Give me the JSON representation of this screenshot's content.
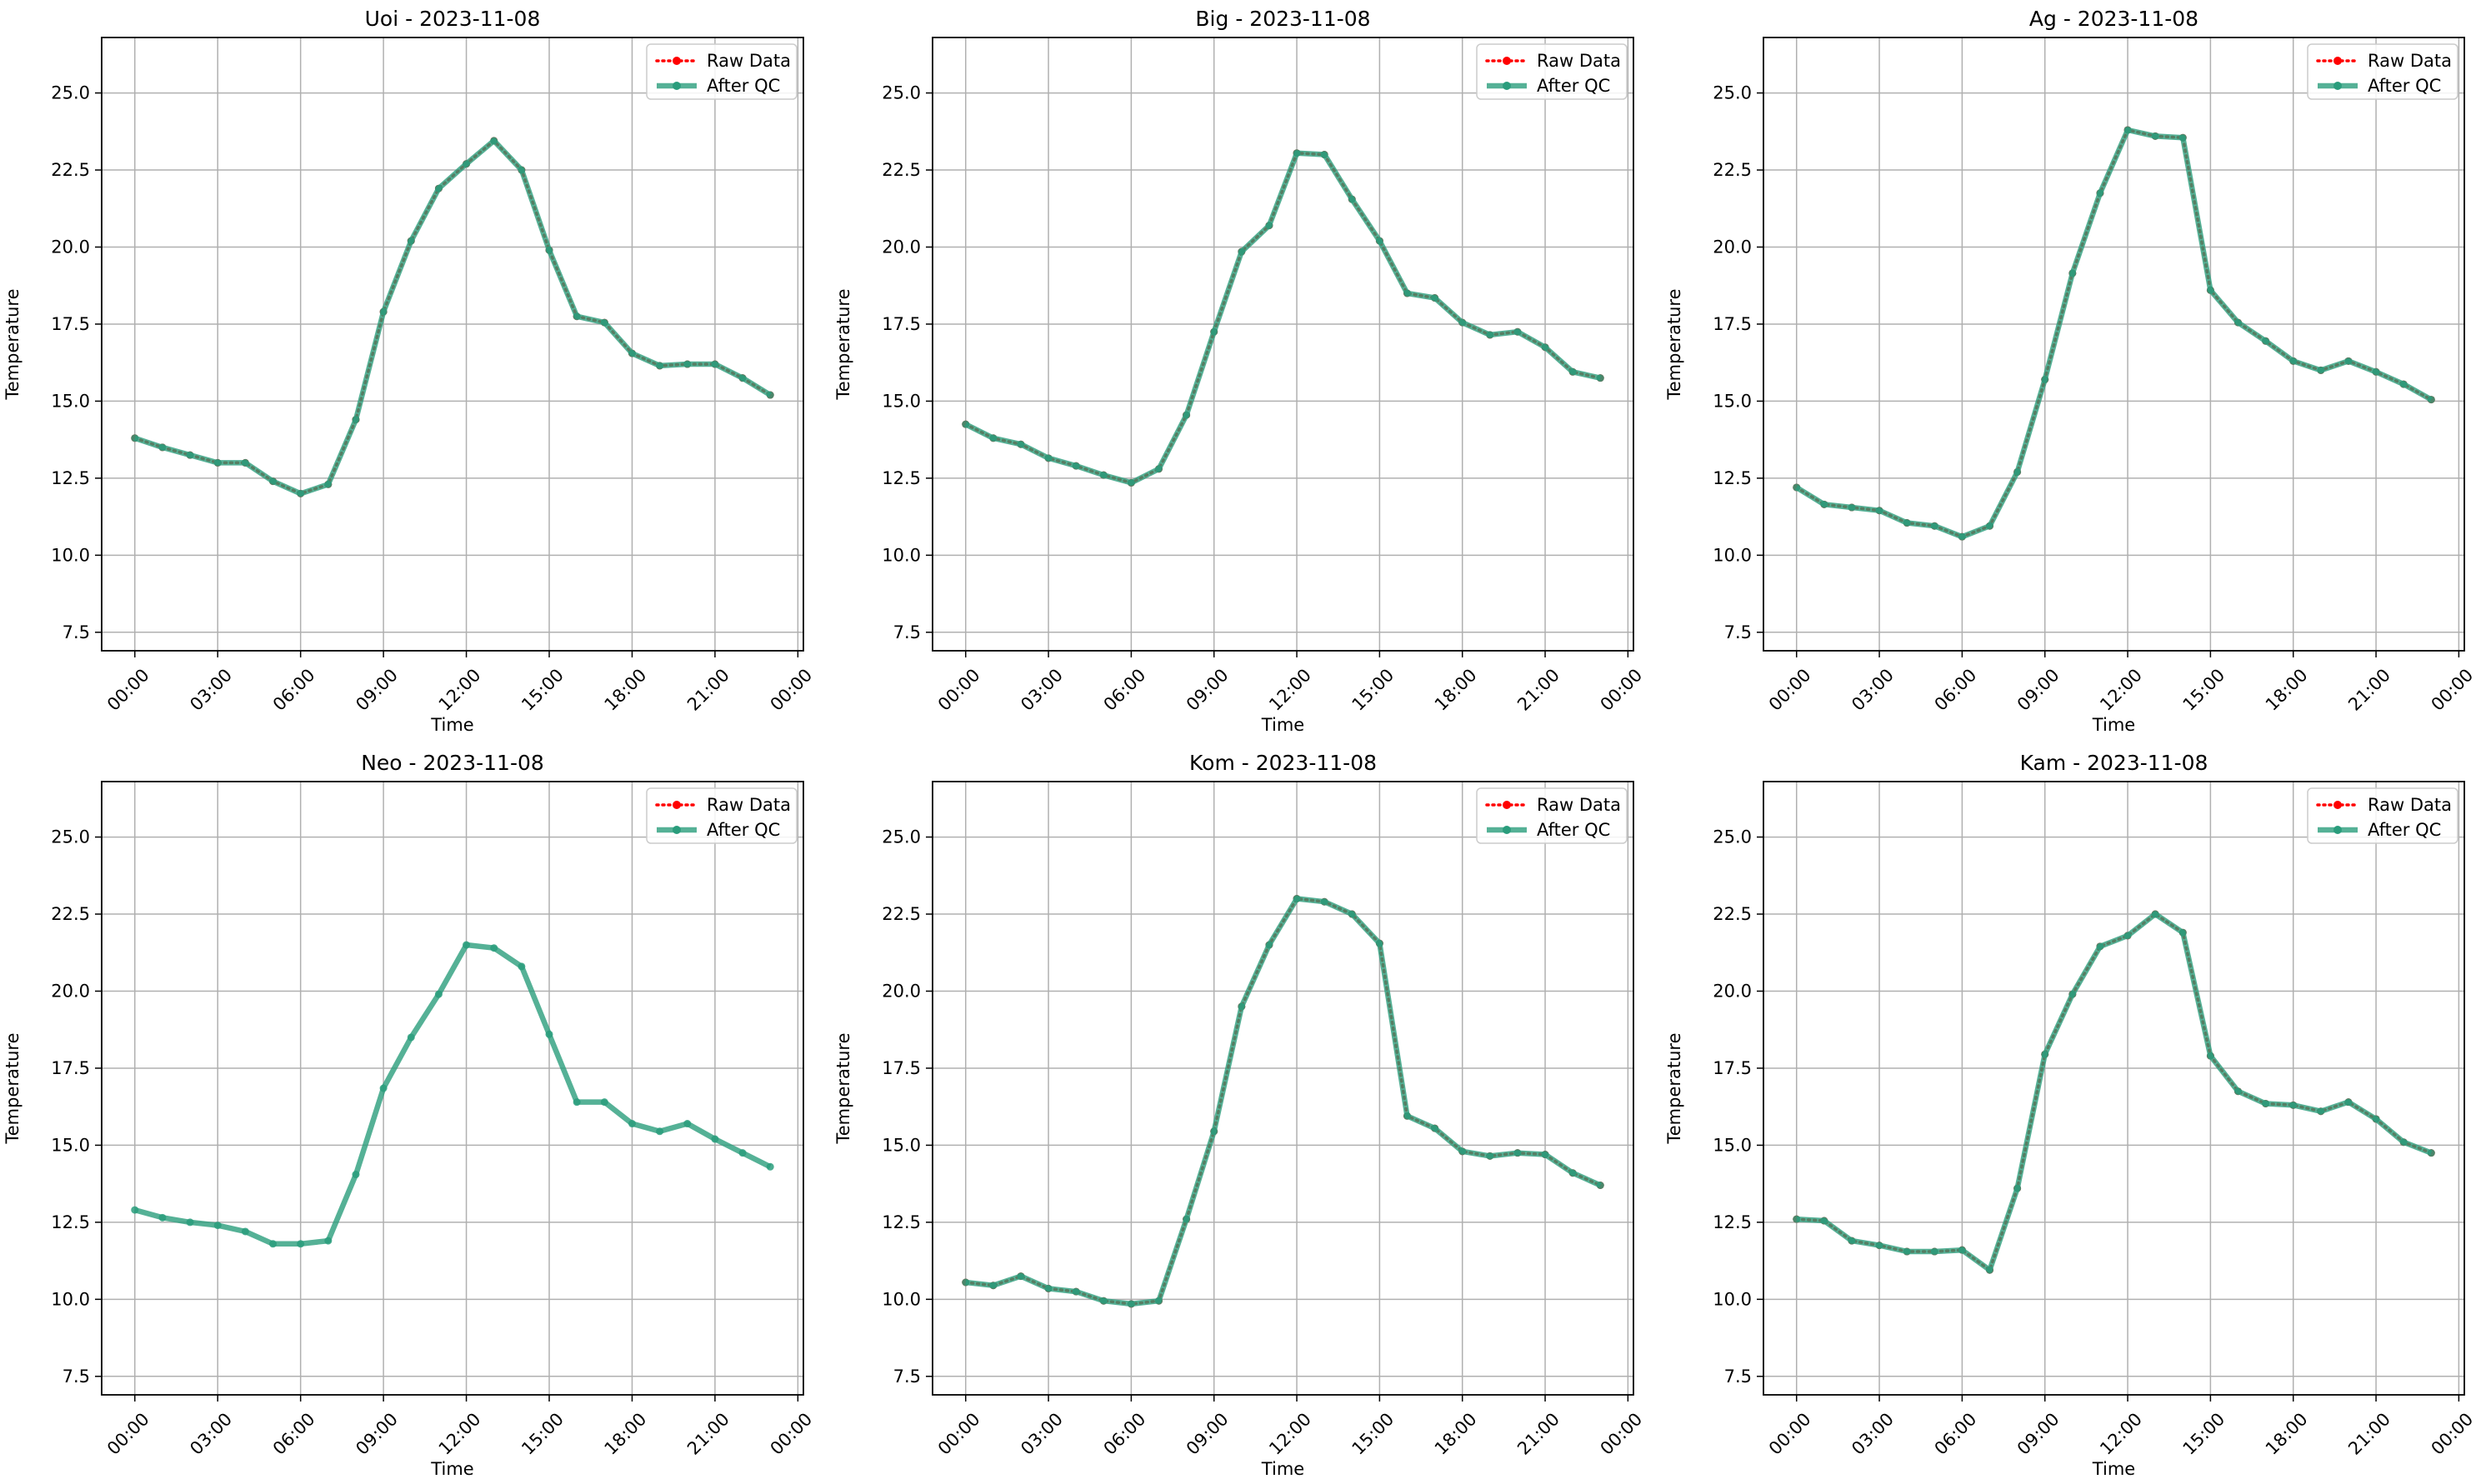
{
  "figure": {
    "colors": {
      "raw": "#ff0000",
      "qc": "#2a9d7c",
      "grid": "#b0b0b0",
      "axis": "#000000"
    }
  },
  "chart_data": [
    {
      "type": "line",
      "title": "Uoi - 2023-11-08",
      "xlabel": "Time",
      "ylabel": "Temperature",
      "x_tick_labels": [
        "00:00",
        "03:00",
        "06:00",
        "09:00",
        "12:00",
        "15:00",
        "18:00",
        "21:00",
        "00:00"
      ],
      "y_tick_labels": [
        "7.5",
        "10.0",
        "12.5",
        "15.0",
        "17.5",
        "20.0",
        "22.5",
        "25.0"
      ],
      "xlim_hours": [
        -1.2,
        24.2
      ],
      "ylim": [
        6.9,
        26.8
      ],
      "grid": true,
      "legend": "top-right",
      "x_hours": [
        0,
        1,
        2,
        3,
        4,
        5,
        6,
        7,
        8,
        9,
        10,
        11,
        12,
        13,
        14,
        15,
        16,
        17,
        18,
        19,
        20,
        21,
        22,
        23
      ],
      "series": [
        {
          "name": "Raw Data",
          "style": "dotted",
          "values": [
            13.8,
            13.5,
            13.25,
            13.0,
            13.0,
            12.4,
            12.0,
            12.3,
            14.4,
            17.9,
            20.2,
            21.9,
            22.7,
            23.45,
            22.5,
            19.9,
            17.75,
            17.55,
            16.55,
            16.15,
            16.2,
            16.2,
            15.75,
            15.2
          ]
        },
        {
          "name": "After QC",
          "style": "solid",
          "values": [
            13.8,
            13.5,
            13.25,
            13.0,
            13.0,
            12.4,
            12.0,
            12.3,
            14.4,
            17.9,
            20.2,
            21.9,
            22.7,
            23.45,
            22.5,
            19.9,
            17.75,
            17.55,
            16.55,
            16.15,
            16.2,
            16.2,
            15.75,
            15.2
          ]
        }
      ]
    },
    {
      "type": "line",
      "title": "Big - 2023-11-08",
      "xlabel": "Time",
      "ylabel": "Temperature",
      "x_tick_labels": [
        "00:00",
        "03:00",
        "06:00",
        "09:00",
        "12:00",
        "15:00",
        "18:00",
        "21:00",
        "00:00"
      ],
      "y_tick_labels": [
        "7.5",
        "10.0",
        "12.5",
        "15.0",
        "17.5",
        "20.0",
        "22.5",
        "25.0"
      ],
      "xlim_hours": [
        -1.2,
        24.2
      ],
      "ylim": [
        6.9,
        26.8
      ],
      "grid": true,
      "legend": "top-right",
      "x_hours": [
        0,
        1,
        2,
        3,
        4,
        5,
        6,
        7,
        8,
        9,
        10,
        11,
        12,
        13,
        14,
        15,
        16,
        17,
        18,
        19,
        20,
        21,
        22,
        23
      ],
      "series": [
        {
          "name": "Raw Data",
          "style": "dotted",
          "values": [
            14.25,
            13.8,
            13.6,
            13.15,
            12.9,
            12.6,
            12.35,
            12.8,
            14.55,
            17.25,
            19.85,
            20.7,
            23.05,
            23.0,
            21.55,
            20.2,
            18.5,
            18.35,
            17.55,
            17.15,
            17.25,
            16.75,
            15.95,
            15.75
          ]
        },
        {
          "name": "After QC",
          "style": "solid",
          "values": [
            14.25,
            13.8,
            13.6,
            13.15,
            12.9,
            12.6,
            12.35,
            12.8,
            14.55,
            17.25,
            19.85,
            20.7,
            23.05,
            23.0,
            21.55,
            20.2,
            18.5,
            18.35,
            17.55,
            17.15,
            17.25,
            16.75,
            15.95,
            15.75
          ]
        }
      ]
    },
    {
      "type": "line",
      "title": "Ag - 2023-11-08",
      "xlabel": "Time",
      "ylabel": "Temperature",
      "x_tick_labels": [
        "00:00",
        "03:00",
        "06:00",
        "09:00",
        "12:00",
        "15:00",
        "18:00",
        "21:00",
        "00:00"
      ],
      "y_tick_labels": [
        "7.5",
        "10.0",
        "12.5",
        "15.0",
        "17.5",
        "20.0",
        "22.5",
        "25.0"
      ],
      "xlim_hours": [
        -1.2,
        24.2
      ],
      "ylim": [
        6.9,
        26.8
      ],
      "grid": true,
      "legend": "top-right",
      "x_hours": [
        0,
        1,
        2,
        3,
        4,
        5,
        6,
        7,
        8,
        9,
        10,
        11,
        12,
        13,
        14,
        15,
        16,
        17,
        18,
        19,
        20,
        21,
        22,
        23
      ],
      "series": [
        {
          "name": "Raw Data",
          "style": "dotted",
          "values": [
            12.2,
            11.65,
            11.55,
            11.45,
            11.05,
            10.95,
            10.6,
            10.95,
            12.7,
            15.7,
            19.15,
            21.75,
            23.8,
            23.6,
            23.55,
            18.6,
            17.55,
            16.95,
            16.3,
            16.0,
            16.3,
            15.95,
            15.55,
            15.05
          ]
        },
        {
          "name": "After QC",
          "style": "solid",
          "values": [
            12.2,
            11.65,
            11.55,
            11.45,
            11.05,
            10.95,
            10.6,
            10.95,
            12.7,
            15.7,
            19.15,
            21.75,
            23.8,
            23.6,
            23.55,
            18.6,
            17.55,
            16.95,
            16.3,
            16.0,
            16.3,
            15.95,
            15.55,
            15.05
          ]
        }
      ]
    },
    {
      "type": "line",
      "title": "Neo - 2023-11-08",
      "xlabel": "Time",
      "ylabel": "Temperature",
      "x_tick_labels": [
        "00:00",
        "03:00",
        "06:00",
        "09:00",
        "12:00",
        "15:00",
        "18:00",
        "21:00",
        "00:00"
      ],
      "y_tick_labels": [
        "7.5",
        "10.0",
        "12.5",
        "15.0",
        "17.5",
        "20.0",
        "22.5",
        "25.0"
      ],
      "xlim_hours": [
        -1.2,
        24.2
      ],
      "ylim": [
        6.9,
        26.8
      ],
      "grid": true,
      "legend": "top-right",
      "x_hours": [
        0,
        1,
        2,
        3,
        4,
        5,
        6,
        7,
        8,
        9,
        10,
        11,
        12,
        13,
        14,
        15,
        16,
        17,
        18,
        19,
        20,
        21,
        22,
        23
      ],
      "series": [
        {
          "name": "Raw Data",
          "style": "dotted",
          "values": []
        },
        {
          "name": "After QC",
          "style": "solid",
          "values": [
            12.9,
            12.65,
            12.5,
            12.4,
            12.2,
            11.8,
            11.8,
            11.9,
            14.05,
            16.85,
            18.5,
            19.9,
            21.5,
            21.4,
            20.8,
            18.6,
            16.4,
            16.4,
            15.7,
            15.45,
            15.7,
            15.2,
            14.75,
            14.3
          ]
        }
      ]
    },
    {
      "type": "line",
      "title": "Kom - 2023-11-08",
      "xlabel": "Time",
      "ylabel": "Temperature",
      "x_tick_labels": [
        "00:00",
        "03:00",
        "06:00",
        "09:00",
        "12:00",
        "15:00",
        "18:00",
        "21:00",
        "00:00"
      ],
      "y_tick_labels": [
        "7.5",
        "10.0",
        "12.5",
        "15.0",
        "17.5",
        "20.0",
        "22.5",
        "25.0"
      ],
      "xlim_hours": [
        -1.2,
        24.2
      ],
      "ylim": [
        6.9,
        26.8
      ],
      "grid": true,
      "legend": "top-right",
      "x_hours": [
        0,
        1,
        2,
        3,
        4,
        5,
        6,
        7,
        8,
        9,
        10,
        11,
        12,
        13,
        14,
        15,
        16,
        17,
        18,
        19,
        20,
        21,
        22,
        23
      ],
      "series": [
        {
          "name": "Raw Data",
          "style": "dotted",
          "values": [
            10.55,
            10.45,
            10.75,
            10.35,
            10.25,
            9.95,
            9.85,
            9.95,
            12.6,
            15.45,
            19.5,
            21.5,
            23.0,
            22.9,
            22.5,
            21.55,
            15.95,
            15.55,
            14.8,
            14.65,
            14.75,
            14.7,
            14.1,
            13.7
          ]
        },
        {
          "name": "After QC",
          "style": "solid",
          "values": [
            10.55,
            10.45,
            10.75,
            10.35,
            10.25,
            9.95,
            9.85,
            9.95,
            12.6,
            15.45,
            19.5,
            21.5,
            23.0,
            22.9,
            22.5,
            21.55,
            15.95,
            15.55,
            14.8,
            14.65,
            14.75,
            14.7,
            14.1,
            13.7
          ]
        }
      ]
    },
    {
      "type": "line",
      "title": "Kam - 2023-11-08",
      "xlabel": "Time",
      "ylabel": "Temperature",
      "x_tick_labels": [
        "00:00",
        "03:00",
        "06:00",
        "09:00",
        "12:00",
        "15:00",
        "18:00",
        "21:00",
        "00:00"
      ],
      "y_tick_labels": [
        "7.5",
        "10.0",
        "12.5",
        "15.0",
        "17.5",
        "20.0",
        "22.5",
        "25.0"
      ],
      "xlim_hours": [
        -1.2,
        24.2
      ],
      "ylim": [
        6.9,
        26.8
      ],
      "grid": true,
      "legend": "top-right",
      "x_hours": [
        0,
        1,
        2,
        3,
        4,
        5,
        6,
        7,
        8,
        9,
        10,
        11,
        12,
        13,
        14,
        15,
        16,
        17,
        18,
        19,
        20,
        21,
        22,
        23
      ],
      "series": [
        {
          "name": "Raw Data",
          "style": "dotted",
          "values": [
            12.6,
            12.55,
            11.9,
            11.75,
            11.55,
            11.55,
            11.6,
            10.95,
            13.6,
            17.95,
            19.9,
            21.45,
            21.8,
            22.5,
            21.9,
            17.9,
            16.75,
            16.35,
            16.3,
            16.1,
            16.4,
            15.85,
            15.1,
            14.75
          ]
        },
        {
          "name": "After QC",
          "style": "solid",
          "values": [
            12.6,
            12.55,
            11.9,
            11.75,
            11.55,
            11.55,
            11.6,
            10.95,
            13.6,
            17.95,
            19.9,
            21.45,
            21.8,
            22.5,
            21.9,
            17.9,
            16.75,
            16.35,
            16.3,
            16.1,
            16.4,
            15.85,
            15.1,
            14.75
          ]
        }
      ]
    }
  ]
}
